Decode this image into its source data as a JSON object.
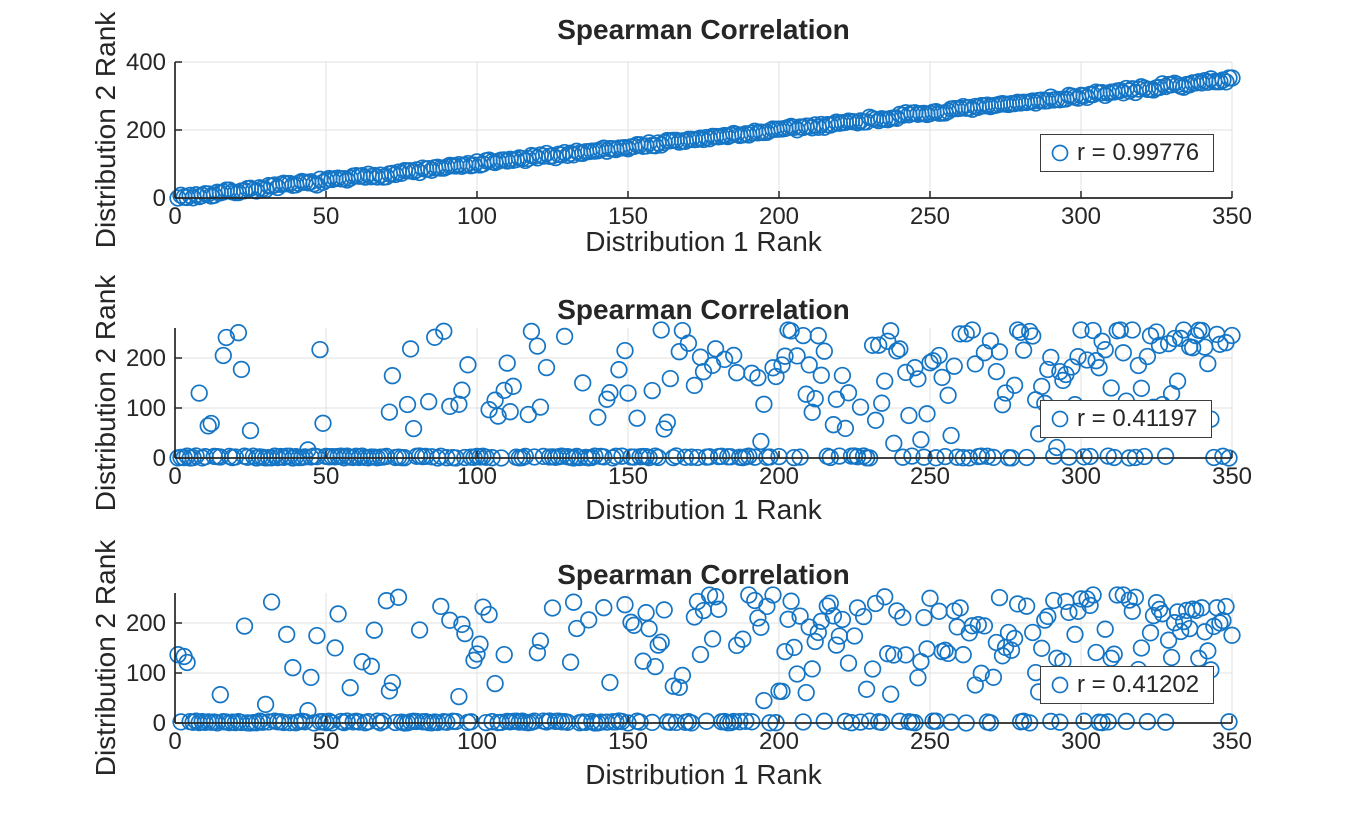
{
  "figure": {
    "background": "#ffffff"
  },
  "colors": {
    "marker": "#1575c5",
    "axis": "#262626",
    "grid": "#e0e0e0",
    "legend_border": "#3c3c3c",
    "legend_bg": "#ffffff"
  },
  "chart_data": [
    {
      "type": "scatter",
      "title": "Spearman Correlation",
      "xlabel": "Distribution 1 Rank",
      "ylabel": "Distribution 2 Rank",
      "xlim": [
        0,
        350
      ],
      "ylim": [
        0,
        400
      ],
      "xticks": [
        0,
        50,
        100,
        150,
        200,
        250,
        300,
        350
      ],
      "yticks": [
        0,
        200,
        400
      ],
      "grid": true,
      "legend": {
        "label": "r = 0.99776",
        "position": "east",
        "marker": "open-circle"
      },
      "r_value": 0.99776,
      "n_points": 350,
      "pattern": "diagonal",
      "jitter": 9,
      "seed": 7,
      "marker": {
        "shape": "circle",
        "radius_px": 7.8,
        "fill": "none",
        "color": "#1575c5"
      }
    },
    {
      "type": "scatter",
      "title": "Spearman Correlation",
      "xlabel": "Distribution 1 Rank",
      "ylabel": "Distribution 2 Rank",
      "xlim": [
        0,
        350
      ],
      "ylim": [
        0,
        260
      ],
      "xticks": [
        0,
        50,
        100,
        150,
        200,
        250,
        300,
        350
      ],
      "yticks": [
        0,
        100,
        200
      ],
      "grid": true,
      "legend": {
        "label": "r = 0.41197",
        "position": "east",
        "marker": "open-circle"
      },
      "r_value": 0.41197,
      "n_points": 350,
      "pattern": "zero-inflated-trend",
      "zero_inflation": {
        "p_left": 0.85,
        "p_right": 0.1
      },
      "y_max_data": 256,
      "skew": 1.4,
      "seed": 23,
      "marker": {
        "shape": "circle",
        "radius_px": 7.8,
        "fill": "none",
        "color": "#1575c5"
      }
    },
    {
      "type": "scatter",
      "title": "Spearman Correlation",
      "xlabel": "Distribution 1 Rank",
      "ylabel": "Distribution 2 Rank",
      "xlim": [
        0,
        350
      ],
      "ylim": [
        0,
        260
      ],
      "xticks": [
        0,
        50,
        100,
        150,
        200,
        250,
        300,
        350
      ],
      "yticks": [
        0,
        100,
        200
      ],
      "grid": true,
      "legend": {
        "label": "r = 0.41202",
        "position": "east",
        "marker": "open-circle"
      },
      "r_value": 0.41202,
      "n_points": 350,
      "pattern": "zero-inflated-trend",
      "zero_inflation": {
        "p_left": 0.85,
        "p_right": 0.1
      },
      "y_max_data": 256,
      "skew": 1.4,
      "seed": 41,
      "marker": {
        "shape": "circle",
        "radius_px": 7.8,
        "fill": "none",
        "color": "#1575c5"
      }
    }
  ]
}
